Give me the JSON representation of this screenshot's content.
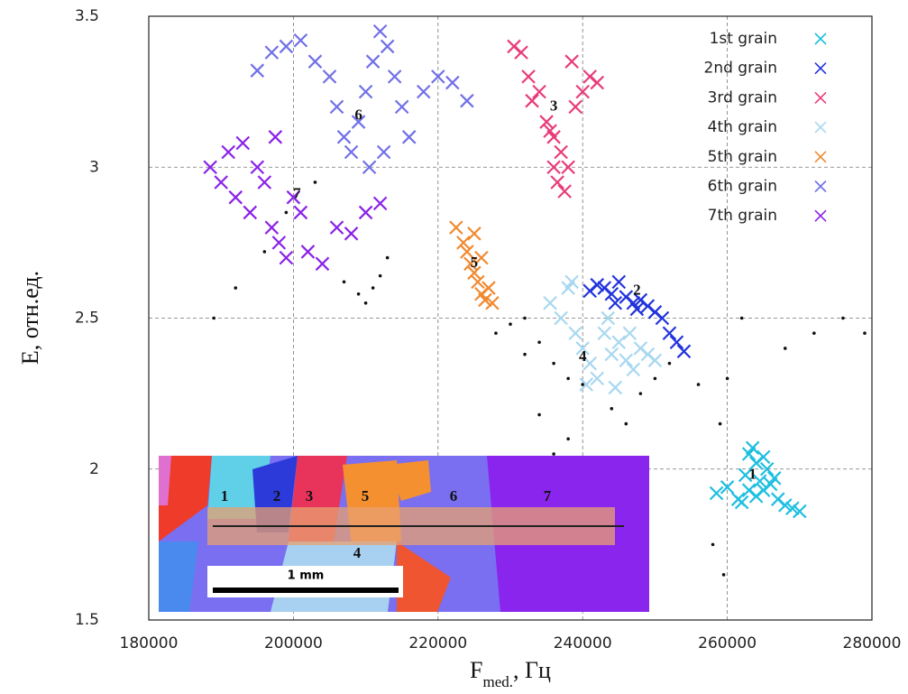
{
  "chart_data": {
    "type": "scatter",
    "xlabel": "F",
    "xlabel_sub": "med.",
    "xlabel_rest": ", Гц",
    "ylabel": "E, отн.ед.",
    "xlim": [
      180000,
      280000
    ],
    "xticks": [
      180000,
      200000,
      220000,
      240000,
      260000,
      280000
    ],
    "ylim": [
      1.5,
      3.5
    ],
    "yticks": [
      1.5,
      2,
      2.5,
      3,
      3.5
    ],
    "grid": true,
    "legend": "upper right",
    "series": [
      {
        "name": "1st grain",
        "color": "#1fbfe0",
        "x": [
          258500,
          260000,
          261500,
          262500,
          263000,
          263500,
          264000,
          264500,
          265000,
          265500,
          266000,
          267000,
          268000,
          269000,
          270000,
          263000,
          262000,
          265000,
          264000,
          266500
        ],
        "values": [
          1.92,
          1.94,
          1.9,
          1.98,
          2.05,
          2.07,
          2.02,
          1.96,
          1.93,
          2.0,
          1.95,
          1.9,
          1.88,
          1.87,
          1.86,
          1.93,
          1.89,
          2.04,
          1.91,
          1.97
        ]
      },
      {
        "name": "2nd grain",
        "color": "#2233dd",
        "x": [
          241000,
          242000,
          243000,
          244000,
          245000,
          246000,
          247000,
          248000,
          249000,
          250000,
          251000,
          252000,
          253000,
          254000,
          244500,
          247500
        ],
        "values": [
          2.59,
          2.61,
          2.6,
          2.58,
          2.62,
          2.57,
          2.55,
          2.56,
          2.54,
          2.52,
          2.5,
          2.45,
          2.42,
          2.39,
          2.55,
          2.53
        ]
      },
      {
        "name": "3rd grain",
        "color": "#e83c7a",
        "x": [
          230500,
          231500,
          232500,
          233000,
          234000,
          235000,
          236000,
          237000,
          238000,
          239000,
          240000,
          241000,
          242000,
          236500,
          237500,
          236000,
          235500,
          238500
        ],
        "values": [
          3.4,
          3.38,
          3.3,
          3.22,
          3.25,
          3.15,
          3.1,
          3.05,
          3.0,
          3.2,
          3.25,
          3.3,
          3.28,
          2.95,
          2.92,
          3.0,
          3.12,
          3.35
        ]
      },
      {
        "name": "4th grain",
        "color": "#a8d8f0",
        "x": [
          235500,
          237000,
          238000,
          239000,
          240000,
          241000,
          242000,
          243000,
          244000,
          245000,
          246000,
          247000,
          248000,
          249000,
          250000,
          238500,
          240500,
          243500,
          246500,
          244500
        ],
        "values": [
          2.55,
          2.5,
          2.6,
          2.45,
          2.4,
          2.35,
          2.3,
          2.45,
          2.38,
          2.42,
          2.36,
          2.33,
          2.4,
          2.38,
          2.36,
          2.62,
          2.28,
          2.5,
          2.45,
          2.27
        ]
      },
      {
        "name": "5th grain",
        "color": "#f08a30",
        "x": [
          222500,
          223500,
          224000,
          224500,
          225000,
          225500,
          226000,
          226500,
          227000,
          227500,
          225000,
          226000
        ],
        "values": [
          2.8,
          2.75,
          2.72,
          2.68,
          2.65,
          2.62,
          2.58,
          2.56,
          2.6,
          2.55,
          2.78,
          2.7
        ]
      },
      {
        "name": "6th grain",
        "color": "#7070e8",
        "x": [
          195000,
          197000,
          199000,
          201000,
          203000,
          205000,
          206000,
          207000,
          208000,
          209000,
          210000,
          211000,
          212000,
          213000,
          214000,
          215000,
          216000,
          218000,
          220000,
          222000,
          224000,
          210500,
          212500
        ],
        "values": [
          3.32,
          3.38,
          3.4,
          3.42,
          3.35,
          3.3,
          3.2,
          3.1,
          3.05,
          3.15,
          3.25,
          3.35,
          3.45,
          3.4,
          3.3,
          3.2,
          3.1,
          3.25,
          3.3,
          3.28,
          3.22,
          3.0,
          3.05
        ]
      },
      {
        "name": "7th grain",
        "color": "#8a22e8",
        "x": [
          188500,
          190000,
          191000,
          192000,
          193000,
          194000,
          195000,
          196000,
          197000,
          198000,
          199000,
          200000,
          201000,
          202000,
          204000,
          206000,
          208000,
          210000,
          212000,
          197500
        ],
        "values": [
          3.0,
          2.95,
          3.05,
          2.9,
          3.08,
          2.85,
          3.0,
          2.95,
          2.8,
          2.75,
          2.7,
          2.9,
          2.85,
          2.72,
          2.68,
          2.8,
          2.78,
          2.85,
          2.88,
          3.1
        ]
      },
      {
        "color": "#111111",
        "marker": "dot",
        "x": [
          189000,
          192000,
          196000,
          199000,
          203000,
          207000,
          209000,
          210000,
          211000,
          212000,
          213000,
          232000,
          234000,
          236000,
          238000,
          240000,
          244000,
          246000,
          248000,
          250000,
          228000,
          230000,
          232000,
          234000,
          236000,
          238000,
          252000,
          256000,
          259000,
          260000,
          262000,
          268000,
          272000,
          276000,
          279000,
          258000,
          259500
        ],
        "values": [
          2.5,
          2.6,
          2.72,
          2.85,
          2.95,
          2.62,
          2.58,
          2.55,
          2.6,
          2.64,
          2.7,
          2.5,
          2.42,
          2.35,
          2.3,
          2.28,
          2.2,
          2.15,
          2.25,
          2.3,
          2.45,
          2.48,
          2.38,
          2.18,
          2.05,
          2.1,
          2.35,
          2.28,
          2.15,
          2.3,
          2.5,
          2.4,
          2.45,
          2.5,
          2.45,
          1.75,
          1.65
        ]
      }
    ],
    "annotations": [
      {
        "text": "1",
        "x": 263500,
        "y": 1.98
      },
      {
        "text": "2",
        "x": 247500,
        "y": 2.59
      },
      {
        "text": "3",
        "x": 236000,
        "y": 3.2
      },
      {
        "text": "4",
        "x": 240000,
        "y": 2.37
      },
      {
        "text": "5",
        "x": 225000,
        "y": 2.68
      },
      {
        "text": "6",
        "x": 209000,
        "y": 3.17
      },
      {
        "text": "7",
        "x": 200500,
        "y": 2.91
      }
    ],
    "inset": {
      "labels": [
        "1",
        "2",
        "3",
        "5",
        "6",
        "7",
        "4"
      ],
      "scale_label": "1 mm"
    }
  }
}
